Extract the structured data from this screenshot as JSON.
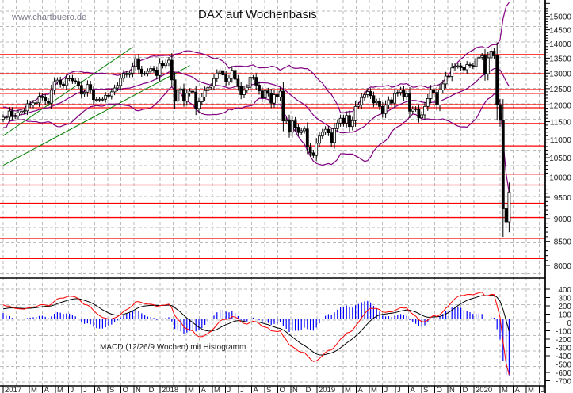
{
  "chart_data": {
    "type": "candlestick",
    "title": "DAX auf Wochenbasis",
    "watermark": "www.chartbuero.de",
    "xlabel": "",
    "ylabel": "",
    "ylim": [
      7800,
      15600
    ],
    "yscale": "log",
    "y_ticks": [
      15000,
      14500,
      14000,
      13500,
      13000,
      12500,
      12000,
      11500,
      11000,
      10500,
      10000,
      9500,
      9000,
      8500,
      8000
    ],
    "x_month_labels": [
      "2017",
      "M",
      "A",
      "M",
      "J",
      "J",
      "A",
      "S",
      "O",
      "N",
      "D",
      "2018",
      "M",
      "A",
      "M",
      "J",
      "J",
      "A",
      "S",
      "O",
      "N",
      "D",
      "2019",
      "M",
      "A",
      "M",
      "J",
      "J",
      "A",
      "S",
      "O",
      "N",
      "D",
      "2020",
      "M",
      "A",
      "M",
      "J"
    ],
    "x_month_slots": [
      0,
      2,
      3,
      4,
      5,
      6,
      7,
      8,
      9,
      10,
      11,
      12,
      14,
      15,
      16,
      17,
      18,
      19,
      20,
      21,
      22,
      23,
      24,
      26,
      27,
      28,
      29,
      30,
      31,
      32,
      33,
      34,
      35,
      36,
      38,
      39,
      40,
      41
    ],
    "weekly_close": [
      11630,
      11630,
      11815,
      11650,
      11670,
      11760,
      11800,
      11820,
      12030,
      11990,
      12060,
      12060,
      12260,
      12220,
      12110,
      12050,
      12450,
      12720,
      12770,
      12640,
      12600,
      12820,
      12840,
      12750,
      12730,
      12600,
      12330,
      12390,
      12630,
      12450,
      12160,
      12160,
      12170,
      12170,
      12290,
      12270,
      12400,
      12520,
      12600,
      12830,
      12990,
      12950,
      13000,
      13220,
      13480,
      13130,
      12990,
      12990,
      13060,
      13150,
      13100,
      12920,
      13320,
      13250,
      13340,
      13430,
      12780,
      12110,
      12450,
      12490,
      12110,
      12350,
      12420,
      12390,
      11890,
      12090,
      12240,
      12440,
      12540,
      12580,
      12820,
      13000,
      13080,
      12940,
      12720,
      12830,
      13090,
      12800,
      12570,
      12310,
      12450,
      12540,
      12860,
      12860,
      12610,
      12430,
      12210,
      12430,
      12350,
      12050,
      12310,
      12240,
      12420,
      11520,
      11550,
      11200,
      11520,
      11340,
      11190,
      11240,
      11290,
      10790,
      10630,
      10560,
      10890,
      11090,
      11200,
      11280,
      11180,
      10910,
      11300,
      11460,
      11600,
      11460,
      11680,
      11360,
      11530,
      11950,
      12000,
      12220,
      12310,
      12410,
      12280,
      12060,
      12100,
      11950,
      11740,
      12000,
      12150,
      12050,
      12340,
      12380,
      12460,
      12250,
      12340,
      11810,
      11870,
      11880,
      11610,
      11700,
      11950,
      12190,
      12470,
      12380,
      12000,
      12460,
      12650,
      12900,
      12890,
      13170,
      13230,
      13240,
      13180,
      13110,
      13280,
      13250,
      13220,
      13480,
      13530,
      13580,
      12980,
      13510,
      13740,
      13580,
      12000,
      11540,
      9230,
      8930,
      9630
    ],
    "bollinger": {
      "period": 20,
      "stddev": 2,
      "color": "#800080"
    },
    "horizontal_levels": [
      13620,
      12980,
      12470,
      12350,
      12006,
      11910,
      11445,
      10818,
      10075,
      9800,
      9360,
      9028,
      8563,
      8140
    ],
    "trendlines": [
      {
        "from_week": 0,
        "from_price": 11100,
        "to_week": 43,
        "to_price": 13880
      },
      {
        "from_week": 0,
        "from_price": 10300,
        "to_week": 62,
        "to_price": 13250
      }
    ],
    "macd": {
      "label": "MACD (12/26/9 Wochen) mit Histogramm",
      "fast": 12,
      "slow": 26,
      "signal": 9,
      "ylim": [
        -700,
        450
      ],
      "y_ticks": [
        400,
        300,
        200,
        100,
        0,
        -100,
        -200,
        -300,
        -400,
        -500,
        -600,
        -700
      ],
      "macd_color": "#ff0000",
      "signal_color": "#000000",
      "histogram_color": "#0000ff"
    },
    "colors": {
      "levels": "#ff0000",
      "trend": "#008000",
      "grid": "#bbbbbb"
    }
  }
}
